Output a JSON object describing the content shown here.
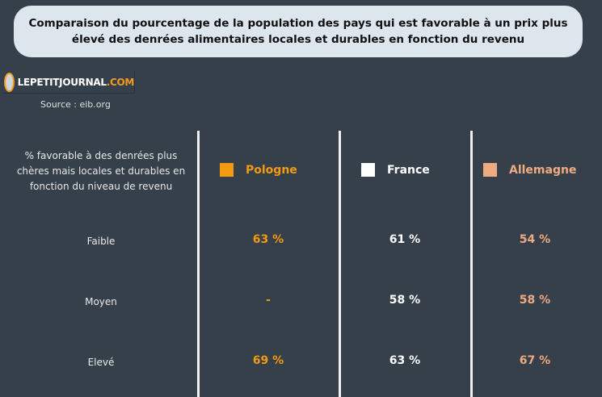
{
  "title": "Comparaison du pourcentage de la population des pays qui est favorable à un prix plus élevé des denrées alimentaires locales et durables en fonction du revenu",
  "logo": {
    "name": "LEPETITJOURNAL",
    "suffix": ".COM"
  },
  "source": "Source : eib.org",
  "chart_data": {
    "type": "table",
    "row_header": "% favorable à des denrées plus chères mais locales et durables en fonction du niveau de revenu",
    "categories": [
      "Faible",
      "Moyen",
      "Elevé"
    ],
    "series": [
      {
        "name": "Pologne",
        "color": "#f39a10",
        "values": [
          63,
          null,
          69
        ],
        "labels": [
          "63 %",
          "-",
          "69 %"
        ]
      },
      {
        "name": "France",
        "color": "#ffffff",
        "values": [
          61,
          58,
          63
        ],
        "labels": [
          "61 %",
          "58 %",
          "63 %"
        ]
      },
      {
        "name": "Allemagne",
        "color": "#eeaa80",
        "values": [
          54,
          58,
          67
        ],
        "labels": [
          "54 %",
          "58 %",
          "67 %"
        ]
      }
    ]
  }
}
